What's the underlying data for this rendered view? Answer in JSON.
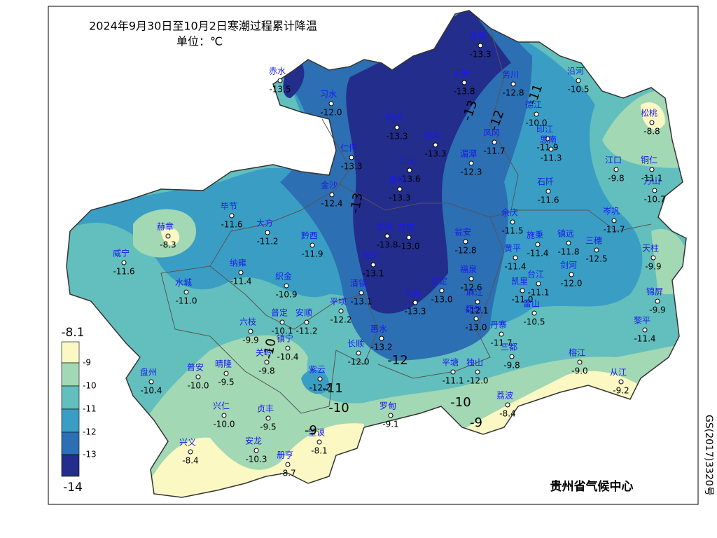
{
  "header": {
    "title": "2024年9月30日至10月2日寒潮过程累计降温",
    "unit": "单位：℃"
  },
  "legend": {
    "top": "-8.1",
    "bottom": "-14",
    "levels": [
      {
        "label": "-9",
        "color": "#fbf8c4"
      },
      {
        "label": "-10",
        "color": "#a2d8b4"
      },
      {
        "label": "-11",
        "color": "#63bfbd"
      },
      {
        "label": "-12",
        "color": "#3a9ec4"
      },
      {
        "label": "-13",
        "color": "#2c6fb3"
      },
      {
        "color": "#232d8b"
      }
    ]
  },
  "contour_labels": [
    "-13",
    "-13",
    "-12",
    "-11",
    "-12",
    "-11",
    "-10",
    "-10",
    "-9",
    "-9",
    "-10"
  ],
  "stations": [
    {
      "name": "赤水",
      "value": "-13.5"
    },
    {
      "name": "习水",
      "value": "-12.0"
    },
    {
      "name": "道真",
      "value": "-13.3"
    },
    {
      "name": "正安",
      "value": "-13.8"
    },
    {
      "name": "务川",
      "value": "-12.8"
    },
    {
      "name": "沿河",
      "value": "-10.5"
    },
    {
      "name": "德江",
      "value": "-10.0"
    },
    {
      "name": "松桃",
      "value": "-8.8"
    },
    {
      "name": "桐梓",
      "value": "-13.3"
    },
    {
      "name": "绥阳",
      "value": "-13.3"
    },
    {
      "name": "凤冈",
      "value": "-11.7"
    },
    {
      "name": "印江",
      "value": "-11.9"
    },
    {
      "name": "思南",
      "value": "-11.3"
    },
    {
      "name": "仁怀",
      "value": "-13.3"
    },
    {
      "name": "汇川",
      "value": "-13.6"
    },
    {
      "name": "湄潭",
      "value": "-12.3"
    },
    {
      "name": "江口",
      "value": "-9.8"
    },
    {
      "name": "铜仁",
      "value": "-11.1"
    },
    {
      "name": "万山",
      "value": "-10.7"
    },
    {
      "name": "金沙",
      "value": "-12.4"
    },
    {
      "name": "播州",
      "value": "-13.3"
    },
    {
      "name": "石阡",
      "value": "-11.6"
    },
    {
      "name": "毕节",
      "value": "-11.6"
    },
    {
      "name": "赫章",
      "value": "-8.3"
    },
    {
      "name": "大方",
      "value": "-11.2"
    },
    {
      "name": "黔西",
      "value": "-11.9"
    },
    {
      "name": "息烽",
      "value": "-13.8"
    },
    {
      "name": "开阳",
      "value": "-13.0"
    },
    {
      "name": "瓮安",
      "value": "-12.8"
    },
    {
      "name": "余庆",
      "value": "-11.5"
    },
    {
      "name": "施秉",
      "value": "-11.4"
    },
    {
      "name": "镇远",
      "value": "-11.8"
    },
    {
      "name": "岑巩",
      "value": "-11.7"
    },
    {
      "name": "三穗",
      "value": "-12.5"
    },
    {
      "name": "天柱",
      "value": "-9.9"
    },
    {
      "name": "威宁",
      "value": "-11.6"
    },
    {
      "name": "纳雍",
      "value": "-11.4"
    },
    {
      "name": "修文",
      "value": "-13.1"
    },
    {
      "name": "黄平",
      "value": "-11.4"
    },
    {
      "name": "织金",
      "value": "-10.9"
    },
    {
      "name": "清镇",
      "value": "-13.1"
    },
    {
      "name": "龙里",
      "value": "-13.3"
    },
    {
      "name": "贵定",
      "value": "-13.0"
    },
    {
      "name": "福泉",
      "value": "-12.6"
    },
    {
      "name": "凯里",
      "value": "-11.0"
    },
    {
      "name": "剑河",
      "value": "-12.0"
    },
    {
      "name": "台江",
      "value": "-11.1"
    },
    {
      "name": "雷山",
      "value": "-10.5"
    },
    {
      "name": "锦屏",
      "value": "-9.9"
    },
    {
      "name": "水城",
      "value": "-11.0"
    },
    {
      "name": "平坝",
      "value": "-12.2"
    },
    {
      "name": "麻江",
      "value": "-12.1"
    },
    {
      "name": "黎平",
      "value": "-11.4"
    },
    {
      "name": "六枝",
      "value": "-9.9"
    },
    {
      "name": "普定",
      "value": "-10.1"
    },
    {
      "name": "安顺",
      "value": "-11.2"
    },
    {
      "name": "长顺",
      "value": "-12.0"
    },
    {
      "name": "惠水",
      "value": "-13.2"
    },
    {
      "name": "都匀",
      "value": "-13.0"
    },
    {
      "name": "丹寨",
      "value": "-11.7"
    },
    {
      "name": "三都",
      "value": "-9.8"
    },
    {
      "name": "镇宁",
      "value": "-10.4"
    },
    {
      "name": "关岭",
      "value": "-9.8"
    },
    {
      "name": "紫云",
      "value": "-12.2"
    },
    {
      "name": "平塘",
      "value": "-11.1"
    },
    {
      "name": "独山",
      "value": "-12.0"
    },
    {
      "name": "榕江",
      "value": "-9.0"
    },
    {
      "name": "从江",
      "value": "-9.2"
    },
    {
      "name": "盘州",
      "value": "-10.4"
    },
    {
      "name": "普安",
      "value": "-10.0"
    },
    {
      "name": "晴隆",
      "value": "-9.5"
    },
    {
      "name": "兴仁",
      "value": "-10.0"
    },
    {
      "name": "贞丰",
      "value": "-9.5"
    },
    {
      "name": "罗甸",
      "value": "-9.1"
    },
    {
      "name": "荔波",
      "value": "-8.4"
    },
    {
      "name": "兴义",
      "value": "-8.4"
    },
    {
      "name": "安龙",
      "value": "-10.3"
    },
    {
      "name": "册亨",
      "value": "-8.7"
    },
    {
      "name": "望谟",
      "value": "-8.1"
    }
  ],
  "credit": "贵州省气候中心",
  "map_number": "GS(2017)3320号"
}
